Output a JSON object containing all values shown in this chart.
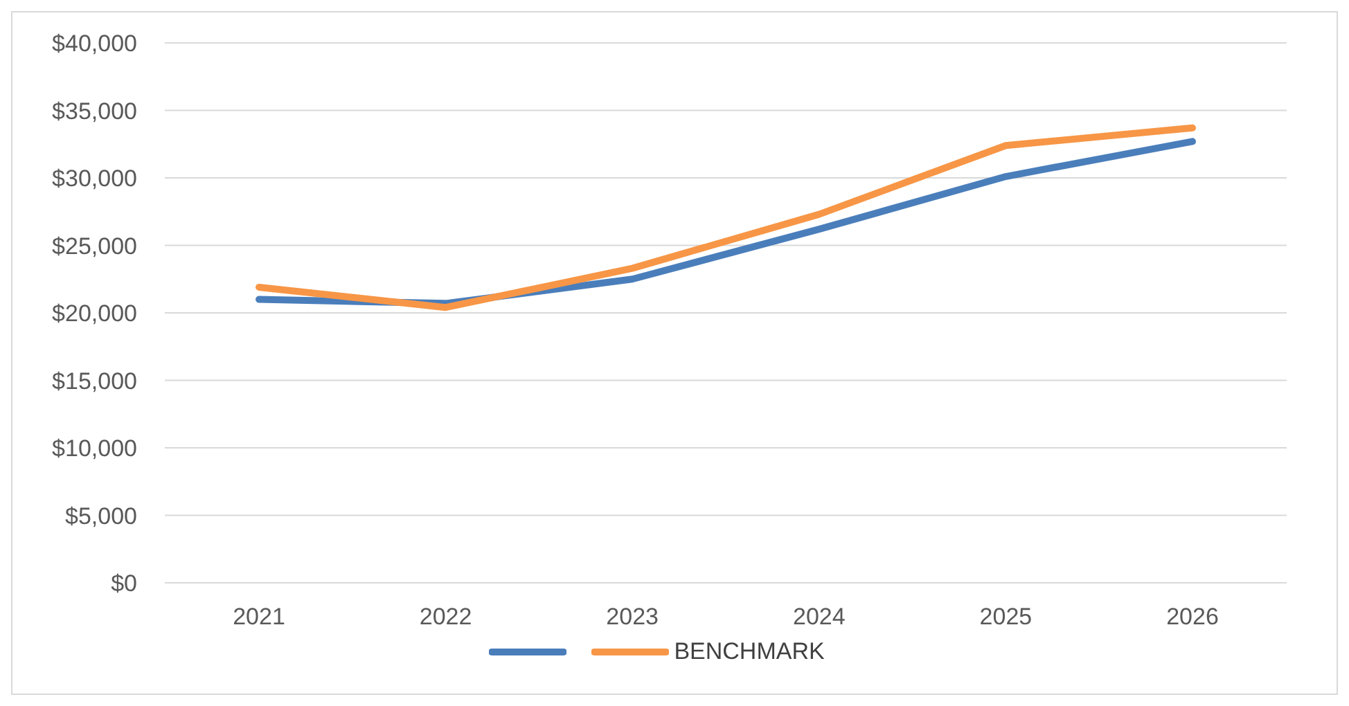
{
  "chart_data": {
    "type": "line",
    "categories": [
      "2021",
      "2022",
      "2023",
      "2024",
      "2025",
      "2026"
    ],
    "series": [
      {
        "color": "#4a7ebb",
        "values": [
          21000,
          20700,
          22500,
          26200,
          30100,
          32700
        ]
      },
      {
        "name": "BENCHMARK",
        "color": "#f79646",
        "values": [
          21900,
          20400,
          23300,
          27300,
          32400,
          33700
        ]
      }
    ],
    "ylim": [
      0,
      40000
    ],
    "yticks": [
      {
        "value": 0,
        "label": "$0"
      },
      {
        "value": 5000,
        "label": "$5,000"
      },
      {
        "value": 10000,
        "label": "$10,000"
      },
      {
        "value": 15000,
        "label": "$15,000"
      },
      {
        "value": 20000,
        "label": "$20,000"
      },
      {
        "value": 25000,
        "label": "$25,000"
      },
      {
        "value": 30000,
        "label": "$30,000"
      },
      {
        "value": 35000,
        "label": "$35,000"
      },
      {
        "value": 40000,
        "label": "$40,000"
      }
    ],
    "grid": "y",
    "legend": "bottom",
    "marker": "none",
    "line_style": "solid"
  }
}
